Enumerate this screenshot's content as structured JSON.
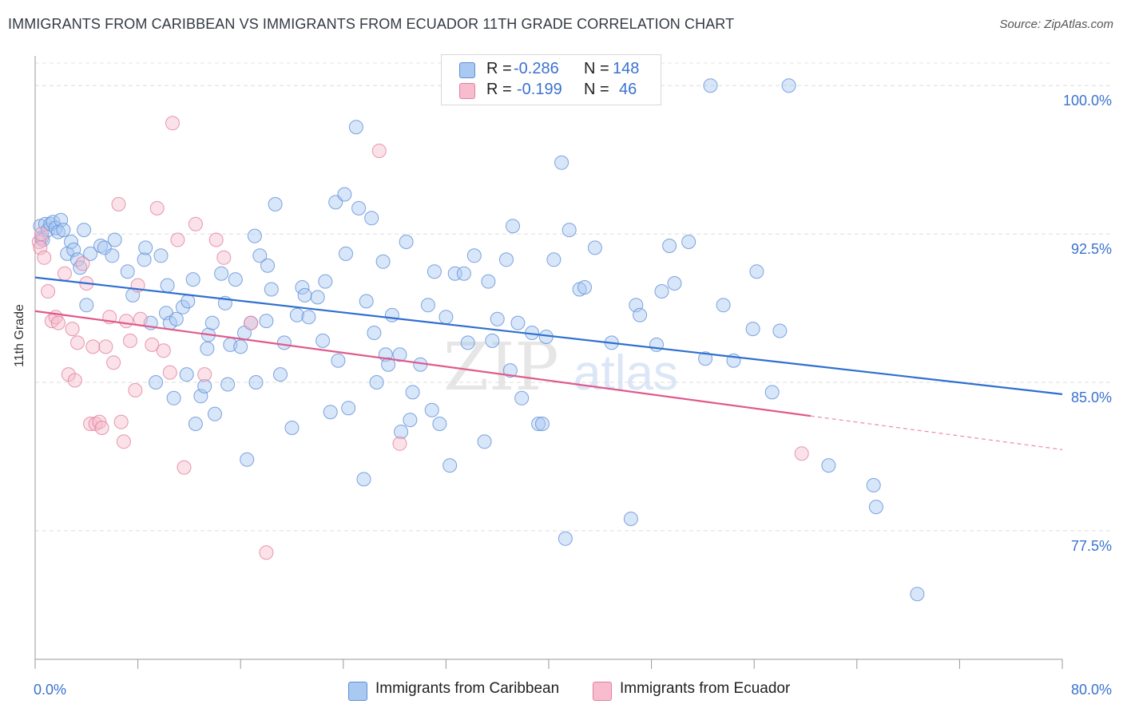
{
  "title": "IMMIGRANTS FROM CARIBBEAN VS IMMIGRANTS FROM ECUADOR 11TH GRADE CORRELATION CHART",
  "source_label": "Source: ZipAtlas.com",
  "watermark": {
    "zip": "ZIP",
    "atlas": "atlas"
  },
  "legend": {
    "r_label": "R =",
    "n_label": "N =",
    "rows": [
      {
        "r": "-0.286",
        "n": "148",
        "color": "#a9c8f2",
        "border": "#5f8fd6"
      },
      {
        "r": "-0.199",
        "n": "46",
        "color": "#f7bccd",
        "border": "#e17fa0"
      }
    ]
  },
  "chart_data": {
    "type": "scatter",
    "title": "IMMIGRANTS FROM CARIBBEAN VS IMMIGRANTS FROM ECUADOR 11TH GRADE CORRELATION CHART",
    "xlabel": "",
    "ylabel": "11th Grade",
    "xlim": [
      0,
      80
    ],
    "ylim": [
      71.0,
      101.5
    ],
    "x_tick_labels": [
      "0.0%",
      "80.0%"
    ],
    "y_ticks": [
      77.5,
      85.0,
      92.5,
      100.0
    ],
    "y_tick_labels": [
      "77.5%",
      "85.0%",
      "92.5%",
      "100.0%"
    ],
    "grid": "horizontal dashed",
    "legend_position": "top-center",
    "series": [
      {
        "name": "Immigrants from Caribbean",
        "color": "#a9c8f2",
        "edge": "#5f8fd6",
        "trend": {
          "x": [
            0,
            80
          ],
          "y": [
            90.3,
            84.4
          ],
          "color": "#2f6fd0"
        },
        "points": [
          [
            0.4,
            92.9
          ],
          [
            0.5,
            92.3
          ],
          [
            0.6,
            92.2
          ],
          [
            0.8,
            93.0
          ],
          [
            1.0,
            92.7
          ],
          [
            1.2,
            93.0
          ],
          [
            1.4,
            93.1
          ],
          [
            1.6,
            92.8
          ],
          [
            1.8,
            92.6
          ],
          [
            2.0,
            93.2
          ],
          [
            2.2,
            92.7
          ],
          [
            2.5,
            91.5
          ],
          [
            2.8,
            92.1
          ],
          [
            3.0,
            91.7
          ],
          [
            3.3,
            91.2
          ],
          [
            3.5,
            90.8
          ],
          [
            3.8,
            92.7
          ],
          [
            4.0,
            88.9
          ],
          [
            4.3,
            91.5
          ],
          [
            5.1,
            91.9
          ],
          [
            5.4,
            91.8
          ],
          [
            6.0,
            91.4
          ],
          [
            6.2,
            92.2
          ],
          [
            7.2,
            90.6
          ],
          [
            7.6,
            89.4
          ],
          [
            8.5,
            91.2
          ],
          [
            8.6,
            91.8
          ],
          [
            9.0,
            88.0
          ],
          [
            9.4,
            85.0
          ],
          [
            9.8,
            91.4
          ],
          [
            10.2,
            88.5
          ],
          [
            10.3,
            89.9
          ],
          [
            10.5,
            88.0
          ],
          [
            10.8,
            84.2
          ],
          [
            11.0,
            88.2
          ],
          [
            11.5,
            88.8
          ],
          [
            11.8,
            85.4
          ],
          [
            11.9,
            89.1
          ],
          [
            12.3,
            90.2
          ],
          [
            12.5,
            82.9
          ],
          [
            12.9,
            84.3
          ],
          [
            13.2,
            84.8
          ],
          [
            13.4,
            86.7
          ],
          [
            13.5,
            87.4
          ],
          [
            13.8,
            88.0
          ],
          [
            14.0,
            83.4
          ],
          [
            14.5,
            90.5
          ],
          [
            14.8,
            89.0
          ],
          [
            15.0,
            84.9
          ],
          [
            15.2,
            86.9
          ],
          [
            15.6,
            90.2
          ],
          [
            16.0,
            86.8
          ],
          [
            16.3,
            87.5
          ],
          [
            16.5,
            81.1
          ],
          [
            16.8,
            88.0
          ],
          [
            17.1,
            92.4
          ],
          [
            17.2,
            85.0
          ],
          [
            17.5,
            91.4
          ],
          [
            18.0,
            88.1
          ],
          [
            18.1,
            90.9
          ],
          [
            18.4,
            89.7
          ],
          [
            18.7,
            94.0
          ],
          [
            19.1,
            85.4
          ],
          [
            19.4,
            87.0
          ],
          [
            20.0,
            82.7
          ],
          [
            20.4,
            88.4
          ],
          [
            20.8,
            89.8
          ],
          [
            21.0,
            89.4
          ],
          [
            21.3,
            88.3
          ],
          [
            22.0,
            89.3
          ],
          [
            22.4,
            87.1
          ],
          [
            22.6,
            90.1
          ],
          [
            23.0,
            83.5
          ],
          [
            23.4,
            94.1
          ],
          [
            23.6,
            86.1
          ],
          [
            24.1,
            94.5
          ],
          [
            24.2,
            91.5
          ],
          [
            24.4,
            83.7
          ],
          [
            25.0,
            97.9
          ],
          [
            25.2,
            93.8
          ],
          [
            25.6,
            80.1
          ],
          [
            25.8,
            89.1
          ],
          [
            26.2,
            93.3
          ],
          [
            26.4,
            87.5
          ],
          [
            26.6,
            85.0
          ],
          [
            27.1,
            91.1
          ],
          [
            27.3,
            86.4
          ],
          [
            27.5,
            85.9
          ],
          [
            27.8,
            88.4
          ],
          [
            28.4,
            86.4
          ],
          [
            28.5,
            82.5
          ],
          [
            28.9,
            92.1
          ],
          [
            29.2,
            83.1
          ],
          [
            29.4,
            84.5
          ],
          [
            30.0,
            85.9
          ],
          [
            30.6,
            88.9
          ],
          [
            30.9,
            83.6
          ],
          [
            31.1,
            90.6
          ],
          [
            31.5,
            82.9
          ],
          [
            32.0,
            88.3
          ],
          [
            32.3,
            80.8
          ],
          [
            32.7,
            90.5
          ],
          [
            33.4,
            90.5
          ],
          [
            33.7,
            87.0
          ],
          [
            34.2,
            91.4
          ],
          [
            35.0,
            82.0
          ],
          [
            35.3,
            90.1
          ],
          [
            35.6,
            87.1
          ],
          [
            36.0,
            88.2
          ],
          [
            36.7,
            91.2
          ],
          [
            37.0,
            85.6
          ],
          [
            37.2,
            92.9
          ],
          [
            37.6,
            88.0
          ],
          [
            37.9,
            84.2
          ],
          [
            38.7,
            87.5
          ],
          [
            39.2,
            82.9
          ],
          [
            39.5,
            82.9
          ],
          [
            39.8,
            87.3
          ],
          [
            40.4,
            91.2
          ],
          [
            41.0,
            96.1
          ],
          [
            41.3,
            77.1
          ],
          [
            41.6,
            92.7
          ],
          [
            42.4,
            89.7
          ],
          [
            42.8,
            89.8
          ],
          [
            43.6,
            91.8
          ],
          [
            44.9,
            87.0
          ],
          [
            46.4,
            78.1
          ],
          [
            46.8,
            88.9
          ],
          [
            47.1,
            88.4
          ],
          [
            48.4,
            86.9
          ],
          [
            48.8,
            89.6
          ],
          [
            49.4,
            91.9
          ],
          [
            49.8,
            90.0
          ],
          [
            50.9,
            92.1
          ],
          [
            52.2,
            86.2
          ],
          [
            52.6,
            100.0
          ],
          [
            53.6,
            88.9
          ],
          [
            54.4,
            86.1
          ],
          [
            55.9,
            87.7
          ],
          [
            56.2,
            90.6
          ],
          [
            57.4,
            84.5
          ],
          [
            58.0,
            87.6
          ],
          [
            58.7,
            100.0
          ],
          [
            61.8,
            80.8
          ],
          [
            65.3,
            79.8
          ],
          [
            65.5,
            78.7
          ],
          [
            68.7,
            74.3
          ]
        ]
      },
      {
        "name": "Immigrants from Ecuador",
        "color": "#f7bccd",
        "edge": "#e17fa0",
        "trend": {
          "x": [
            0,
            60.4
          ],
          "y": [
            88.6,
            83.3
          ],
          "dashed_to": [
            80,
            81.6
          ],
          "color": "#e05a8c"
        },
        "points": [
          [
            0.3,
            92.1
          ],
          [
            0.4,
            91.8
          ],
          [
            0.5,
            92.5
          ],
          [
            0.7,
            91.3
          ],
          [
            1.0,
            89.6
          ],
          [
            1.3,
            88.1
          ],
          [
            1.6,
            88.3
          ],
          [
            1.8,
            88.0
          ],
          [
            2.3,
            90.5
          ],
          [
            2.6,
            85.4
          ],
          [
            2.9,
            87.7
          ],
          [
            3.1,
            85.1
          ],
          [
            3.3,
            87.0
          ],
          [
            3.7,
            91.0
          ],
          [
            4.0,
            90.0
          ],
          [
            4.3,
            82.9
          ],
          [
            4.5,
            86.8
          ],
          [
            4.7,
            82.9
          ],
          [
            5.0,
            83.0
          ],
          [
            5.2,
            82.7
          ],
          [
            5.5,
            86.8
          ],
          [
            5.8,
            88.3
          ],
          [
            6.1,
            86.0
          ],
          [
            6.5,
            94.0
          ],
          [
            6.7,
            83.0
          ],
          [
            6.9,
            82.0
          ],
          [
            7.1,
            88.1
          ],
          [
            7.4,
            87.1
          ],
          [
            7.8,
            84.6
          ],
          [
            8.0,
            89.9
          ],
          [
            8.2,
            88.2
          ],
          [
            9.1,
            86.9
          ],
          [
            9.5,
            93.8
          ],
          [
            10.0,
            86.6
          ],
          [
            10.5,
            85.5
          ],
          [
            10.7,
            98.1
          ],
          [
            11.1,
            92.2
          ],
          [
            11.6,
            80.7
          ],
          [
            12.5,
            93.0
          ],
          [
            13.2,
            85.4
          ],
          [
            14.1,
            92.2
          ],
          [
            14.7,
            91.3
          ],
          [
            16.8,
            88.0
          ],
          [
            18.0,
            76.4
          ],
          [
            26.8,
            96.7
          ],
          [
            28.4,
            81.9
          ],
          [
            59.7,
            81.4
          ]
        ]
      }
    ]
  }
}
